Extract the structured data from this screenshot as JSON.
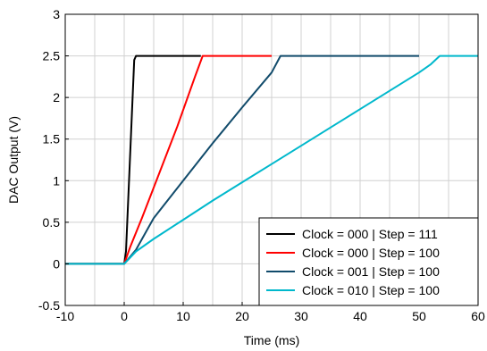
{
  "chart_data": {
    "type": "line",
    "title": "",
    "xlabel": "Time (ms)",
    "ylabel": "DAC Output (V)",
    "xlim": [
      -10,
      60
    ],
    "ylim": [
      -0.5,
      3
    ],
    "xticks": [
      -10,
      0,
      10,
      20,
      30,
      40,
      50,
      60
    ],
    "yticks": [
      -0.5,
      0,
      0.5,
      1,
      1.5,
      2,
      2.5,
      3
    ],
    "xtick_labels": [
      "-10",
      "0",
      "10",
      "20",
      "30",
      "40",
      "50",
      "60"
    ],
    "ytick_labels": [
      "-0.5",
      "0",
      "0.5",
      "1",
      "1.5",
      "2",
      "2.5",
      "3"
    ],
    "grid": true,
    "legend_position": "bottom-right",
    "series": [
      {
        "name": "Clock = 000 | Step = 111",
        "color": "#000000",
        "x": [
          -10,
          0,
          0.3,
          1.7,
          2.0,
          13
        ],
        "y": [
          0,
          0,
          0.15,
          2.45,
          2.5,
          2.5
        ]
      },
      {
        "name": "Clock = 000 | Step = 100",
        "color": "#ff0000",
        "x": [
          -10,
          0,
          1,
          3,
          6,
          9,
          12,
          13.3,
          25
        ],
        "y": [
          0,
          0,
          0.2,
          0.55,
          1.1,
          1.65,
          2.25,
          2.5,
          2.5
        ]
      },
      {
        "name": "Clock = 001 | Step = 100",
        "color": "#114b6b",
        "x": [
          -10,
          0,
          2,
          5,
          10,
          15,
          20,
          25,
          26.5,
          50
        ],
        "y": [
          0,
          0,
          0.17,
          0.55,
          1.0,
          1.45,
          1.88,
          2.3,
          2.5,
          2.5
        ]
      },
      {
        "name": "Clock = 010 | Step = 100",
        "color": "#00b8cc",
        "x": [
          -10,
          0,
          2,
          5,
          10,
          15,
          20,
          25,
          30,
          35,
          40,
          45,
          50,
          52,
          53.5,
          60
        ],
        "y": [
          0,
          0,
          0.15,
          0.3,
          0.53,
          0.76,
          0.98,
          1.2,
          1.42,
          1.64,
          1.86,
          2.08,
          2.3,
          2.4,
          2.5,
          2.5
        ]
      }
    ]
  }
}
